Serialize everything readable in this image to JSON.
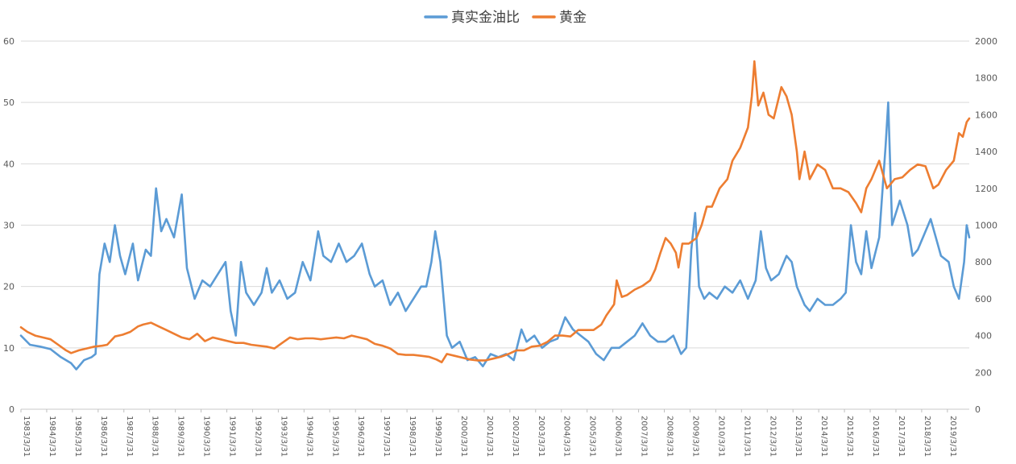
{
  "chart_data": {
    "type": "line",
    "title": "",
    "xlabel": "",
    "ylabel_left": "",
    "ylabel_right": "",
    "legend_position": "top-center",
    "grid": true,
    "x_range": [
      1983.25,
      2020.1
    ],
    "y_left_range": [
      0,
      60
    ],
    "y_right_range": [
      0,
      2000
    ],
    "y_left_ticks": [
      "0",
      "10",
      "20",
      "30",
      "40",
      "50",
      "60"
    ],
    "y_right_ticks": [
      "0",
      "200",
      "400",
      "600",
      "800",
      "1000",
      "1200",
      "1400",
      "1600",
      "1800",
      "2000"
    ],
    "x_tick_labels": [
      "1983/3/31",
      "1984/3/31",
      "1985/3/31",
      "1986/3/31",
      "1987/3/31",
      "1988/3/31",
      "1989/3/31",
      "1990/3/31",
      "1991/3/31",
      "1992/3/31",
      "1993/3/31",
      "1994/3/31",
      "1995/3/31",
      "1996/3/31",
      "1997/3/31",
      "1998/3/31",
      "1999/3/31",
      "2000/3/31",
      "2001/3/31",
      "2002/3/31",
      "2003/3/31",
      "2004/3/31",
      "2005/3/31",
      "2006/3/31",
      "2007/3/31",
      "2008/3/31",
      "2009/3/31",
      "2010/3/31",
      "2011/3/31",
      "2012/3/31",
      "2013/3/31",
      "2014/3/31",
      "2015/3/31",
      "2016/3/31",
      "2017/3/31",
      "2018/3/31",
      "2019/3/31"
    ],
    "series": [
      {
        "name": "真实金油比",
        "axis": "left",
        "color": "#5B9BD5",
        "points": [
          [
            1983.25,
            12
          ],
          [
            1983.6,
            10.5
          ],
          [
            1984.0,
            10.2
          ],
          [
            1984.4,
            9.8
          ],
          [
            1984.8,
            8.5
          ],
          [
            1985.2,
            7.5
          ],
          [
            1985.4,
            6.5
          ],
          [
            1985.7,
            8
          ],
          [
            1986.0,
            8.5
          ],
          [
            1986.15,
            9
          ],
          [
            1986.3,
            22
          ],
          [
            1986.5,
            27
          ],
          [
            1986.7,
            24
          ],
          [
            1986.9,
            30
          ],
          [
            1987.1,
            25
          ],
          [
            1987.3,
            22
          ],
          [
            1987.6,
            27
          ],
          [
            1987.8,
            21
          ],
          [
            1988.1,
            26
          ],
          [
            1988.3,
            25
          ],
          [
            1988.5,
            36
          ],
          [
            1988.7,
            29
          ],
          [
            1988.9,
            31
          ],
          [
            1989.2,
            28
          ],
          [
            1989.5,
            35
          ],
          [
            1989.7,
            23
          ],
          [
            1990.0,
            18
          ],
          [
            1990.3,
            21
          ],
          [
            1990.6,
            20
          ],
          [
            1990.9,
            22
          ],
          [
            1991.2,
            24
          ],
          [
            1991.4,
            16
          ],
          [
            1991.6,
            12
          ],
          [
            1991.8,
            24
          ],
          [
            1992.0,
            19
          ],
          [
            1992.3,
            17
          ],
          [
            1992.6,
            19
          ],
          [
            1992.8,
            23
          ],
          [
            1993.0,
            19
          ],
          [
            1993.3,
            21
          ],
          [
            1993.6,
            18
          ],
          [
            1993.9,
            19
          ],
          [
            1994.2,
            24
          ],
          [
            1994.5,
            21
          ],
          [
            1994.8,
            29
          ],
          [
            1995.0,
            25
          ],
          [
            1995.3,
            24
          ],
          [
            1995.6,
            27
          ],
          [
            1995.9,
            24
          ],
          [
            1996.2,
            25
          ],
          [
            1996.5,
            27
          ],
          [
            1996.8,
            22
          ],
          [
            1997.0,
            20
          ],
          [
            1997.3,
            21
          ],
          [
            1997.6,
            17
          ],
          [
            1997.9,
            19
          ],
          [
            1998.2,
            16
          ],
          [
            1998.5,
            18
          ],
          [
            1998.8,
            20
          ],
          [
            1999.0,
            20
          ],
          [
            1999.2,
            24
          ],
          [
            1999.35,
            29
          ],
          [
            1999.55,
            24
          ],
          [
            1999.8,
            12
          ],
          [
            2000.0,
            10
          ],
          [
            2000.3,
            11
          ],
          [
            2000.6,
            8
          ],
          [
            2000.9,
            8.5
          ],
          [
            2001.2,
            7
          ],
          [
            2001.5,
            9
          ],
          [
            2001.8,
            8.5
          ],
          [
            2002.1,
            9
          ],
          [
            2002.4,
            8
          ],
          [
            2002.7,
            13
          ],
          [
            2002.9,
            11
          ],
          [
            2003.2,
            12
          ],
          [
            2003.5,
            10
          ],
          [
            2003.8,
            11
          ],
          [
            2004.1,
            11.5
          ],
          [
            2004.4,
            15
          ],
          [
            2004.7,
            13
          ],
          [
            2005.0,
            12
          ],
          [
            2005.3,
            11
          ],
          [
            2005.6,
            9
          ],
          [
            2005.9,
            8
          ],
          [
            2006.2,
            10
          ],
          [
            2006.5,
            10
          ],
          [
            2006.8,
            11
          ],
          [
            2007.1,
            12
          ],
          [
            2007.4,
            14
          ],
          [
            2007.7,
            12
          ],
          [
            2008.0,
            11
          ],
          [
            2008.3,
            11
          ],
          [
            2008.6,
            12
          ],
          [
            2008.9,
            9
          ],
          [
            2009.1,
            10
          ],
          [
            2009.3,
            26
          ],
          [
            2009.45,
            32
          ],
          [
            2009.6,
            20
          ],
          [
            2009.8,
            18
          ],
          [
            2010.0,
            19
          ],
          [
            2010.3,
            18
          ],
          [
            2010.6,
            20
          ],
          [
            2010.9,
            19
          ],
          [
            2011.2,
            21
          ],
          [
            2011.5,
            18
          ],
          [
            2011.8,
            21
          ],
          [
            2012.0,
            29
          ],
          [
            2012.2,
            23
          ],
          [
            2012.4,
            21
          ],
          [
            2012.7,
            22
          ],
          [
            2013.0,
            25
          ],
          [
            2013.2,
            24
          ],
          [
            2013.4,
            20
          ],
          [
            2013.7,
            17
          ],
          [
            2013.9,
            16
          ],
          [
            2014.2,
            18
          ],
          [
            2014.5,
            17
          ],
          [
            2014.8,
            17
          ],
          [
            2015.1,
            18
          ],
          [
            2015.3,
            19
          ],
          [
            2015.5,
            30
          ],
          [
            2015.7,
            24
          ],
          [
            2015.9,
            22
          ],
          [
            2016.1,
            29
          ],
          [
            2016.3,
            23
          ],
          [
            2016.6,
            28
          ],
          [
            2016.85,
            43
          ],
          [
            2016.95,
            50
          ],
          [
            2017.1,
            30
          ],
          [
            2017.4,
            34
          ],
          [
            2017.7,
            30
          ],
          [
            2017.9,
            25
          ],
          [
            2018.1,
            26
          ],
          [
            2018.3,
            28
          ],
          [
            2018.6,
            31
          ],
          [
            2018.8,
            28
          ],
          [
            2019.0,
            25
          ],
          [
            2019.3,
            24
          ],
          [
            2019.5,
            20
          ],
          [
            2019.7,
            18
          ],
          [
            2019.9,
            24
          ],
          [
            2020.0,
            30
          ],
          [
            2020.1,
            28
          ]
        ]
      },
      {
        "name": "黄金",
        "axis": "right",
        "color": "#ED7D31",
        "points": [
          [
            1983.25,
            445
          ],
          [
            1983.5,
            420
          ],
          [
            1983.8,
            400
          ],
          [
            1984.1,
            390
          ],
          [
            1984.4,
            380
          ],
          [
            1984.7,
            350
          ],
          [
            1985.0,
            320
          ],
          [
            1985.2,
            305
          ],
          [
            1985.5,
            320
          ],
          [
            1985.8,
            330
          ],
          [
            1986.1,
            340
          ],
          [
            1986.4,
            345
          ],
          [
            1986.6,
            350
          ],
          [
            1986.9,
            395
          ],
          [
            1987.2,
            405
          ],
          [
            1987.5,
            420
          ],
          [
            1987.8,
            450
          ],
          [
            1988.0,
            460
          ],
          [
            1988.3,
            470
          ],
          [
            1988.6,
            450
          ],
          [
            1988.9,
            430
          ],
          [
            1989.2,
            410
          ],
          [
            1989.5,
            390
          ],
          [
            1989.8,
            380
          ],
          [
            1990.1,
            410
          ],
          [
            1990.4,
            370
          ],
          [
            1990.7,
            390
          ],
          [
            1991.0,
            380
          ],
          [
            1991.3,
            370
          ],
          [
            1991.6,
            360
          ],
          [
            1991.9,
            360
          ],
          [
            1992.2,
            350
          ],
          [
            1992.5,
            345
          ],
          [
            1992.8,
            340
          ],
          [
            1993.1,
            330
          ],
          [
            1993.4,
            360
          ],
          [
            1993.7,
            390
          ],
          [
            1994.0,
            380
          ],
          [
            1994.3,
            385
          ],
          [
            1994.6,
            385
          ],
          [
            1994.9,
            380
          ],
          [
            1995.2,
            385
          ],
          [
            1995.5,
            390
          ],
          [
            1995.8,
            385
          ],
          [
            1996.1,
            400
          ],
          [
            1996.4,
            390
          ],
          [
            1996.7,
            380
          ],
          [
            1997.0,
            355
          ],
          [
            1997.3,
            345
          ],
          [
            1997.6,
            330
          ],
          [
            1997.9,
            300
          ],
          [
            1998.2,
            295
          ],
          [
            1998.5,
            295
          ],
          [
            1998.8,
            290
          ],
          [
            1999.1,
            285
          ],
          [
            1999.4,
            270
          ],
          [
            1999.6,
            255
          ],
          [
            1999.8,
            300
          ],
          [
            2000.1,
            290
          ],
          [
            2000.4,
            280
          ],
          [
            2000.7,
            270
          ],
          [
            2001.0,
            265
          ],
          [
            2001.3,
            265
          ],
          [
            2001.6,
            275
          ],
          [
            2001.9,
            285
          ],
          [
            2002.2,
            300
          ],
          [
            2002.5,
            320
          ],
          [
            2002.8,
            320
          ],
          [
            2003.1,
            340
          ],
          [
            2003.4,
            345
          ],
          [
            2003.7,
            365
          ],
          [
            2004.0,
            400
          ],
          [
            2004.3,
            400
          ],
          [
            2004.6,
            395
          ],
          [
            2004.9,
            430
          ],
          [
            2005.2,
            430
          ],
          [
            2005.5,
            430
          ],
          [
            2005.8,
            460
          ],
          [
            2006.0,
            510
          ],
          [
            2006.3,
            570
          ],
          [
            2006.4,
            700
          ],
          [
            2006.6,
            610
          ],
          [
            2006.8,
            620
          ],
          [
            2007.1,
            650
          ],
          [
            2007.4,
            670
          ],
          [
            2007.7,
            700
          ],
          [
            2007.9,
            760
          ],
          [
            2008.1,
            850
          ],
          [
            2008.3,
            930
          ],
          [
            2008.5,
            900
          ],
          [
            2008.7,
            850
          ],
          [
            2008.8,
            770
          ],
          [
            2008.95,
            900
          ],
          [
            2009.2,
            900
          ],
          [
            2009.5,
            930
          ],
          [
            2009.7,
            1000
          ],
          [
            2009.9,
            1100
          ],
          [
            2010.1,
            1100
          ],
          [
            2010.4,
            1200
          ],
          [
            2010.7,
            1250
          ],
          [
            2010.9,
            1350
          ],
          [
            2011.2,
            1420
          ],
          [
            2011.5,
            1530
          ],
          [
            2011.65,
            1700
          ],
          [
            2011.75,
            1890
          ],
          [
            2011.9,
            1650
          ],
          [
            2012.1,
            1720
          ],
          [
            2012.3,
            1600
          ],
          [
            2012.5,
            1580
          ],
          [
            2012.8,
            1750
          ],
          [
            2013.0,
            1700
          ],
          [
            2013.2,
            1600
          ],
          [
            2013.4,
            1400
          ],
          [
            2013.5,
            1250
          ],
          [
            2013.7,
            1400
          ],
          [
            2013.9,
            1250
          ],
          [
            2014.2,
            1330
          ],
          [
            2014.5,
            1300
          ],
          [
            2014.8,
            1200
          ],
          [
            2015.1,
            1200
          ],
          [
            2015.4,
            1180
          ],
          [
            2015.7,
            1120
          ],
          [
            2015.9,
            1070
          ],
          [
            2016.1,
            1200
          ],
          [
            2016.3,
            1250
          ],
          [
            2016.6,
            1350
          ],
          [
            2016.9,
            1200
          ],
          [
            2017.2,
            1250
          ],
          [
            2017.5,
            1260
          ],
          [
            2017.8,
            1300
          ],
          [
            2018.1,
            1330
          ],
          [
            2018.4,
            1320
          ],
          [
            2018.7,
            1200
          ],
          [
            2018.9,
            1220
          ],
          [
            2019.2,
            1300
          ],
          [
            2019.5,
            1350
          ],
          [
            2019.7,
            1500
          ],
          [
            2019.85,
            1480
          ],
          [
            2020.0,
            1560
          ],
          [
            2020.1,
            1580
          ]
        ]
      }
    ]
  }
}
